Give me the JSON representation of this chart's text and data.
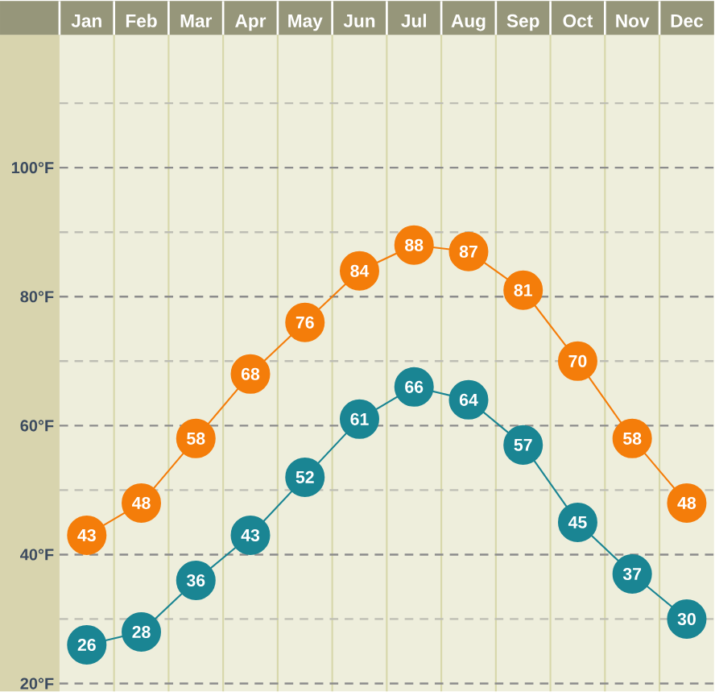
{
  "chart_data": {
    "type": "line",
    "categories": [
      "Jan",
      "Feb",
      "Mar",
      "Apr",
      "May",
      "Jun",
      "Jul",
      "Aug",
      "Sep",
      "Oct",
      "Nov",
      "Dec"
    ],
    "series": [
      {
        "color": "#f47d0a",
        "values": [
          43,
          48,
          58,
          68,
          76,
          84,
          88,
          87,
          81,
          70,
          58,
          48
        ]
      },
      {
        "color": "#1a8593",
        "values": [
          26,
          28,
          36,
          43,
          52,
          61,
          66,
          64,
          57,
          45,
          37,
          30
        ]
      }
    ],
    "ylim": [
      18.8,
      120.6
    ],
    "yticks": [
      {
        "value": 20,
        "label": "20°F"
      },
      {
        "value": 30,
        "label": null
      },
      {
        "value": 40,
        "label": "40°F"
      },
      {
        "value": 50,
        "label": null
      },
      {
        "value": 60,
        "label": "60°F"
      },
      {
        "value": 70,
        "label": null
      },
      {
        "value": 80,
        "label": "80°F"
      },
      {
        "value": 90,
        "label": null
      },
      {
        "value": 100,
        "label": "100°F"
      },
      {
        "value": 110,
        "label": null
      }
    ],
    "grid": true,
    "marker": "circle",
    "line_style": "solid",
    "data_labels": true
  }
}
